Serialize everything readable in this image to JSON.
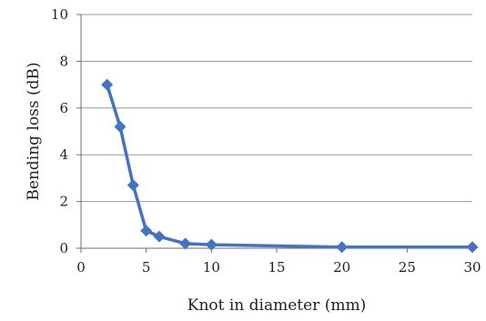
{
  "chart_data": {
    "type": "line",
    "title": "",
    "xlabel": "Knot in diameter (mm)",
    "ylabel": "Bending loss (dB)",
    "xlim": [
      0,
      30
    ],
    "ylim": [
      0,
      10
    ],
    "xticks": [
      0,
      5,
      10,
      15,
      20,
      25,
      30
    ],
    "yticks": [
      0,
      2,
      4,
      6,
      8,
      10
    ],
    "xtick_labels": [
      "0",
      "5",
      "10",
      "15",
      "20",
      "25",
      "30"
    ],
    "ytick_labels": [
      "0",
      "2",
      "4",
      "6",
      "8",
      "10"
    ],
    "grid": true,
    "legend": "none",
    "marker": "diamond",
    "series": [
      {
        "x": [
          2,
          3,
          4,
          5,
          6,
          8,
          10,
          20,
          30
        ],
        "y": [
          7.0,
          5.2,
          2.7,
          0.75,
          0.5,
          0.2,
          0.15,
          0.05,
          0.05
        ]
      }
    ],
    "colors": {
      "series": "#4472c4",
      "grid": "#9a9a9a",
      "axis": "#6f6f6f"
    }
  }
}
